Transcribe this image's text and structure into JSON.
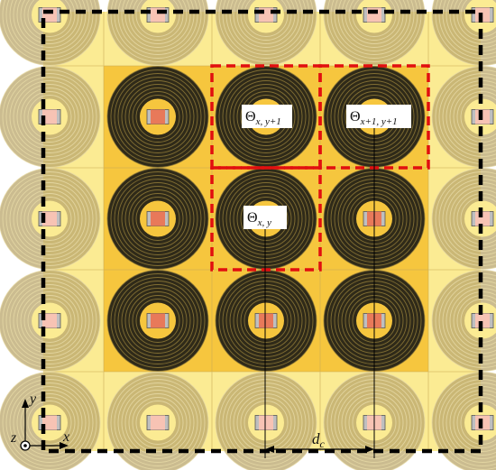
{
  "labels": {
    "theta_top_left": {
      "base": "Θ",
      "sub": "x, y+1"
    },
    "theta_top_right": {
      "base": "Θ",
      "sub": "x+1, y+1"
    },
    "theta_center": {
      "base": "Θ",
      "sub": "x, y"
    },
    "spacing": {
      "base": "d",
      "sub": "c"
    }
  },
  "axes": {
    "y": "y",
    "x": "x",
    "z": "z"
  },
  "colors": {
    "outer_cell": "#fbeb93",
    "inner_cell": "#f6c63e",
    "coil_dark": "#2f2a19",
    "coil_line": "#8f7a38",
    "chip": "#e8795a",
    "chip_light": "#f7c3b4",
    "highlight": "#e10f0f",
    "frame": "#000000"
  }
}
